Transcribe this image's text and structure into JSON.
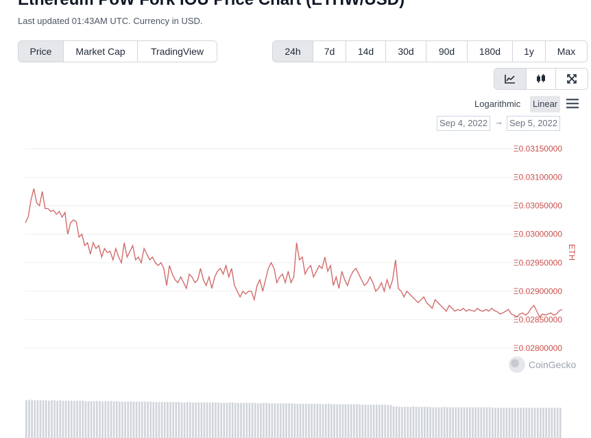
{
  "header": {
    "title": "Ethereum PoW Fork IOU Price Chart (ETHW/USD)",
    "updated": "Last updated 01:43AM UTC. Currency in USD."
  },
  "tabs": [
    {
      "label": "Price",
      "active": true
    },
    {
      "label": "Market Cap",
      "active": false
    },
    {
      "label": "TradingView",
      "active": false
    }
  ],
  "ranges": [
    {
      "label": "24h",
      "active": true
    },
    {
      "label": "7d",
      "active": false
    },
    {
      "label": "14d",
      "active": false
    },
    {
      "label": "30d",
      "active": false
    },
    {
      "label": "90d",
      "active": false
    },
    {
      "label": "180d",
      "active": false
    },
    {
      "label": "1y",
      "active": false
    },
    {
      "label": "Max",
      "active": false
    }
  ],
  "tools": [
    {
      "icon": "line-chart-icon",
      "active": true
    },
    {
      "icon": "candlestick-icon",
      "active": false
    },
    {
      "icon": "expand-icon",
      "active": false
    }
  ],
  "scale": {
    "log_label": "Logarithmic",
    "linear_label": "Linear",
    "selected": "Linear"
  },
  "date_range": {
    "from": "Sep 4, 2022",
    "to": "Sep 5, 2022"
  },
  "watermark": "CoinGecko",
  "colors": {
    "line": "#d26b6b",
    "axis_text": "#c9514d",
    "volume": "#d1d5db",
    "grid": "#eeeeee"
  },
  "chart_data": {
    "type": "line",
    "ylabel": "ETH",
    "ylim": [
      0.0277,
      0.0317
    ],
    "yticks": [
      0.028,
      0.0285,
      0.029,
      0.0295,
      0.03,
      0.0305,
      0.031,
      0.0315
    ],
    "ytick_labels": [
      "Ξ0.02800000",
      "Ξ0.02850000",
      "Ξ0.02900000",
      "Ξ0.02950000",
      "Ξ0.03000000",
      "Ξ0.03050000",
      "Ξ0.03100000",
      "Ξ0.03150000"
    ],
    "grid": true,
    "legend": "none",
    "series": [
      {
        "values": [
          0.0302,
          0.0303,
          0.0306,
          0.0308,
          0.03055,
          0.0305,
          0.03075,
          0.03045,
          0.03045,
          0.0304,
          0.03042,
          0.03035,
          0.0304,
          0.0303,
          0.03038,
          0.03,
          0.0302,
          0.03025,
          0.03022,
          0.02995,
          0.03,
          0.0298,
          0.02985,
          0.02965,
          0.02985,
          0.02975,
          0.0298,
          0.0296,
          0.02975,
          0.02968,
          0.0297,
          0.02955,
          0.02975,
          0.0296,
          0.0295,
          0.02985,
          0.0296,
          0.0297,
          0.0298,
          0.02955,
          0.0296,
          0.0295,
          0.02975,
          0.02965,
          0.02955,
          0.0296,
          0.0295,
          0.02945,
          0.0295,
          0.0294,
          0.0291,
          0.02945,
          0.0293,
          0.0292,
          0.02915,
          0.02925,
          0.02915,
          0.02905,
          0.0293,
          0.02925,
          0.02915,
          0.0292,
          0.0294,
          0.0292,
          0.0291,
          0.02925,
          0.02905,
          0.02925,
          0.02935,
          0.0294,
          0.0293,
          0.02945,
          0.02925,
          0.0294,
          0.0291,
          0.029,
          0.0289,
          0.029,
          0.02895,
          0.029,
          0.029,
          0.02885,
          0.0291,
          0.0292,
          0.029,
          0.0292,
          0.0294,
          0.0295,
          0.0294,
          0.02915,
          0.02925,
          0.0293,
          0.02915,
          0.02935,
          0.02915,
          0.02925,
          0.02985,
          0.02955,
          0.0296,
          0.0293,
          0.0294,
          0.02945,
          0.02925,
          0.02935,
          0.02945,
          0.0294,
          0.0296,
          0.02935,
          0.02945,
          0.0291,
          0.02925,
          0.02905,
          0.02935,
          0.0292,
          0.0291,
          0.02925,
          0.02935,
          0.0294,
          0.0293,
          0.0292,
          0.0291,
          0.02915,
          0.02925,
          0.02915,
          0.029,
          0.02905,
          0.02915,
          0.029,
          0.0292,
          0.02905,
          0.0292,
          0.02955,
          0.02905,
          0.029,
          0.0289,
          0.029,
          0.02895,
          0.0289,
          0.02885,
          0.0288,
          0.02885,
          0.0289,
          0.0288,
          0.02875,
          0.0287,
          0.02885,
          0.0288,
          0.02875,
          0.0287,
          0.02865,
          0.02875,
          0.0287,
          0.02865,
          0.02868,
          0.02866,
          0.0287,
          0.02865,
          0.02868,
          0.02866,
          0.02865,
          0.0287,
          0.02866,
          0.02865,
          0.02868,
          0.02865,
          0.0287,
          0.02866,
          0.02864,
          0.0286,
          0.02862,
          0.02865,
          0.02868,
          0.0286,
          0.02858,
          0.02855,
          0.0286,
          0.02862,
          0.02858,
          0.02862,
          0.0287,
          0.02875,
          0.02865,
          0.02855,
          0.0286,
          0.02858,
          0.0286,
          0.02862,
          0.02858,
          0.0286,
          0.02866,
          0.02868
        ]
      }
    ],
    "volume": [
      0.86,
      0.87,
      0.87,
      0.86,
      0.86,
      0.86,
      0.86,
      0.86,
      0.85,
      0.86,
      0.86,
      0.85,
      0.86,
      0.85,
      0.85,
      0.85,
      0.85,
      0.85,
      0.85,
      0.85,
      0.85,
      0.84,
      0.84,
      0.84,
      0.84,
      0.84,
      0.84,
      0.83,
      0.84,
      0.84,
      0.84,
      0.83,
      0.84,
      0.83,
      0.83,
      0.83,
      0.83,
      0.83,
      0.83,
      0.83,
      0.83,
      0.83,
      0.83,
      0.83,
      0.83,
      0.82,
      0.82,
      0.82,
      0.82,
      0.82,
      0.82,
      0.82,
      0.82,
      0.82,
      0.82,
      0.81,
      0.81,
      0.82,
      0.82,
      0.81,
      0.81,
      0.81,
      0.81,
      0.81,
      0.81,
      0.81,
      0.81,
      0.81,
      0.81,
      0.8,
      0.8,
      0.8,
      0.81,
      0.81,
      0.8,
      0.8,
      0.8,
      0.8,
      0.8,
      0.8,
      0.8,
      0.8,
      0.79,
      0.79,
      0.8,
      0.8,
      0.79,
      0.79,
      0.79,
      0.79,
      0.79,
      0.79,
      0.79,
      0.79,
      0.79,
      0.78,
      0.78,
      0.78,
      0.78,
      0.78,
      0.78,
      0.78,
      0.78,
      0.78,
      0.78,
      0.77,
      0.78,
      0.78,
      0.77,
      0.77,
      0.77,
      0.77,
      0.77,
      0.77,
      0.77,
      0.77,
      0.77,
      0.77,
      0.77,
      0.76,
      0.76,
      0.76,
      0.76,
      0.76,
      0.76,
      0.76,
      0.76,
      0.76,
      0.75,
      0.75,
      0.72,
      0.72,
      0.71,
      0.71,
      0.71,
      0.71,
      0.71,
      0.72,
      0.71,
      0.71,
      0.71,
      0.71,
      0.71,
      0.71,
      0.7,
      0.7,
      0.7,
      0.7,
      0.71,
      0.7,
      0.7,
      0.7,
      0.7,
      0.7,
      0.7,
      0.7,
      0.7,
      0.7,
      0.7,
      0.7,
      0.7,
      0.7,
      0.7,
      0.7,
      0.7,
      0.69,
      0.69,
      0.69,
      0.69,
      0.69,
      0.69,
      0.69,
      0.69,
      0.69,
      0.69,
      0.69,
      0.69,
      0.69,
      0.69,
      0.69,
      0.69,
      0.69,
      0.69,
      0.69,
      0.69,
      0.69,
      0.69,
      0.69,
      0.69,
      0.69
    ]
  }
}
